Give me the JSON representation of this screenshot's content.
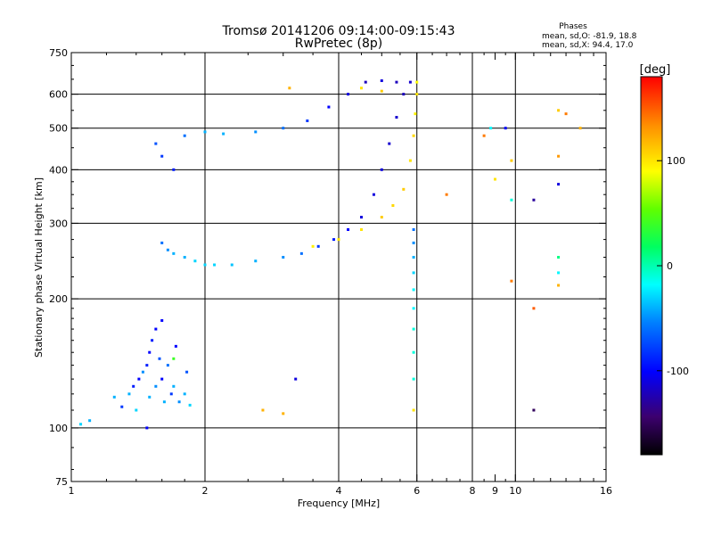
{
  "chart_data": {
    "type": "scatter",
    "title": "Tromsø 20141206 09:14:00-09:15:43",
    "subtitle": "RwPretec (8p)",
    "xlabel": "Frequency [MHz]",
    "ylabel": "Stationary phase Virtual Height [km]",
    "x_scale": "log",
    "y_scale": "log",
    "xlim": [
      1,
      16
    ],
    "ylim": [
      75,
      750
    ],
    "x_ticks": [
      1,
      2,
      4,
      6,
      8,
      9,
      10,
      16
    ],
    "x_tick_labels": [
      "1",
      "2",
      "4",
      "6",
      "8",
      "9",
      "10",
      "16"
    ],
    "x_minor_ticks": [
      3,
      5,
      7,
      11,
      12,
      13,
      14,
      15
    ],
    "x_gridlines": [
      2,
      4,
      6,
      8,
      10
    ],
    "y_ticks": [
      75,
      100,
      200,
      300,
      400,
      500,
      600,
      750
    ],
    "y_gridlines": [
      100,
      200,
      300,
      400,
      500,
      600
    ],
    "grid": true,
    "phases_title": "Phases",
    "phases_line1": "mean, sd,O: -81.9, 18.8",
    "phases_line2": "mean, sd,X:  94.4, 17.0",
    "colorbar": {
      "label": "[deg]",
      "range": [
        -180,
        180
      ],
      "ticks": [
        100,
        0,
        -100
      ],
      "tick_labels": [
        "100",
        "0",
        "-100"
      ]
    },
    "series": [
      {
        "trace": "low-cluster",
        "points": [
          [
            1.05,
            102,
            -30
          ],
          [
            1.1,
            104,
            -40
          ],
          [
            1.25,
            118,
            -40
          ],
          [
            1.3,
            112,
            -80
          ],
          [
            1.35,
            120,
            -40
          ],
          [
            1.38,
            125,
            -90
          ],
          [
            1.4,
            110,
            -30
          ],
          [
            1.42,
            130,
            -100
          ],
          [
            1.45,
            135,
            -50
          ],
          [
            1.48,
            140,
            -90
          ],
          [
            1.5,
            150,
            -100
          ],
          [
            1.5,
            118,
            -40
          ],
          [
            1.52,
            160,
            -90
          ],
          [
            1.55,
            170,
            -100
          ],
          [
            1.55,
            125,
            -50
          ],
          [
            1.58,
            145,
            -70
          ],
          [
            1.6,
            130,
            -100
          ],
          [
            1.62,
            115,
            -40
          ],
          [
            1.65,
            140,
            -60
          ],
          [
            1.68,
            120,
            -80
          ],
          [
            1.7,
            125,
            -40
          ],
          [
            1.72,
            155,
            -100
          ],
          [
            1.75,
            115,
            -50
          ],
          [
            1.8,
            120,
            -40
          ],
          [
            1.82,
            135,
            -70
          ],
          [
            1.85,
            113,
            -30
          ],
          [
            1.48,
            100,
            -100
          ],
          [
            1.6,
            178,
            -100
          ]
        ]
      },
      {
        "trace": "o-trace-low",
        "points": [
          [
            1.6,
            270,
            -60
          ],
          [
            1.65,
            260,
            -50
          ],
          [
            1.7,
            255,
            -40
          ],
          [
            1.8,
            250,
            -40
          ],
          [
            1.9,
            245,
            -30
          ],
          [
            2.0,
            240,
            -30
          ],
          [
            2.1,
            240,
            -30
          ],
          [
            2.3,
            240,
            -35
          ],
          [
            2.6,
            245,
            -40
          ],
          [
            3.0,
            250,
            -50
          ],
          [
            3.3,
            255,
            -60
          ],
          [
            3.6,
            265,
            -80
          ],
          [
            3.9,
            275,
            -90
          ],
          [
            4.2,
            290,
            -100
          ],
          [
            4.5,
            310,
            -110
          ],
          [
            4.8,
            350,
            -110
          ],
          [
            5.0,
            400,
            -110
          ],
          [
            5.2,
            460,
            -115
          ],
          [
            5.4,
            530,
            -115
          ],
          [
            5.6,
            600,
            -120
          ],
          [
            5.8,
            640,
            -115
          ]
        ]
      },
      {
        "trace": "o-trace-high",
        "points": [
          [
            1.55,
            460,
            -70
          ],
          [
            1.6,
            430,
            -80
          ],
          [
            1.7,
            400,
            -90
          ],
          [
            1.8,
            480,
            -60
          ],
          [
            2.0,
            490,
            -40
          ],
          [
            2.2,
            485,
            -40
          ],
          [
            2.6,
            490,
            -50
          ],
          [
            3.0,
            500,
            -60
          ],
          [
            3.4,
            520,
            -80
          ],
          [
            3.8,
            560,
            -100
          ],
          [
            4.2,
            600,
            -110
          ],
          [
            4.6,
            640,
            -120
          ],
          [
            5.0,
            645,
            -110
          ],
          [
            5.4,
            640,
            -120
          ]
        ]
      },
      {
        "trace": "x-trace",
        "points": [
          [
            3.5,
            265,
            95
          ],
          [
            4.0,
            275,
            100
          ],
          [
            4.5,
            290,
            100
          ],
          [
            5.0,
            310,
            110
          ],
          [
            5.3,
            330,
            105
          ],
          [
            5.6,
            360,
            110
          ],
          [
            5.8,
            420,
            100
          ],
          [
            5.9,
            480,
            105
          ],
          [
            5.95,
            540,
            95
          ],
          [
            6.0,
            600,
            100
          ],
          [
            6.0,
            640,
            90
          ],
          [
            4.5,
            620,
            100
          ],
          [
            5.0,
            610,
            110
          ]
        ]
      },
      {
        "trace": "vertical-column",
        "points": [
          [
            5.9,
            150,
            -10
          ],
          [
            5.9,
            170,
            -10
          ],
          [
            5.9,
            190,
            -20
          ],
          [
            5.9,
            210,
            -20
          ],
          [
            5.9,
            230,
            -30
          ],
          [
            5.9,
            250,
            -40
          ],
          [
            5.9,
            270,
            -50
          ],
          [
            5.9,
            290,
            -60
          ],
          [
            5.9,
            110,
            100
          ],
          [
            5.9,
            130,
            -10
          ]
        ]
      },
      {
        "trace": "scattered",
        "points": [
          [
            3.1,
            620,
            120
          ],
          [
            3.2,
            130,
            -110
          ],
          [
            7.0,
            350,
            140
          ],
          [
            8.5,
            480,
            140
          ],
          [
            8.8,
            500,
            -20
          ],
          [
            9.0,
            380,
            100
          ],
          [
            9.5,
            500,
            -100
          ],
          [
            9.8,
            420,
            110
          ],
          [
            9.8,
            340,
            -10
          ],
          [
            9.8,
            220,
            140
          ],
          [
            11.0,
            340,
            -130
          ],
          [
            11.0,
            110,
            -150
          ],
          [
            11.0,
            190,
            150
          ],
          [
            12.5,
            370,
            -110
          ],
          [
            12.5,
            430,
            130
          ],
          [
            12.5,
            550,
            110
          ],
          [
            13.0,
            540,
            140
          ],
          [
            14.0,
            500,
            120
          ],
          [
            12.5,
            230,
            -20
          ],
          [
            12.5,
            250,
            10
          ],
          [
            12.5,
            215,
            120
          ],
          [
            2.7,
            110,
            120
          ],
          [
            3.0,
            108,
            120
          ],
          [
            1.7,
            145,
            40
          ]
        ]
      }
    ]
  }
}
